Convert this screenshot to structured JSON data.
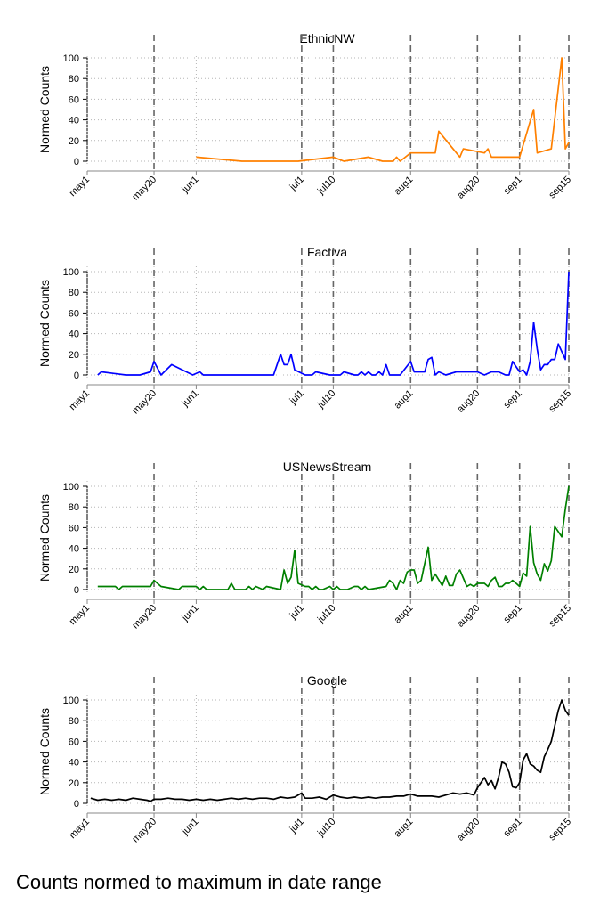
{
  "caption": "Counts normed to maximum in date range",
  "chart_data": [
    {
      "type": "line",
      "title": "EthnicNW",
      "ylabel": "Normed Counts",
      "xlabel": "",
      "ylim": [
        0,
        100
      ],
      "yticks": [
        0,
        20,
        40,
        60,
        80,
        100
      ],
      "xlim": [
        "2020-05-01",
        "2020-09-15"
      ],
      "xticks": [
        {
          "label": "may1",
          "date": "2020-05-01"
        },
        {
          "label": "may20",
          "date": "2020-05-20"
        },
        {
          "label": "jun1",
          "date": "2020-06-01"
        },
        {
          "label": "jul1",
          "date": "2020-07-01"
        },
        {
          "label": "jul10",
          "date": "2020-07-10"
        },
        {
          "label": "aug1",
          "date": "2020-08-01"
        },
        {
          "label": "aug20",
          "date": "2020-08-20"
        },
        {
          "label": "sep1",
          "date": "2020-09-01"
        },
        {
          "label": "sep15",
          "date": "2020-09-15"
        }
      ],
      "vlines": [
        "2020-05-20",
        "2020-07-01",
        "2020-07-10",
        "2020-08-01",
        "2020-08-20",
        "2020-09-01",
        "2020-09-15"
      ],
      "grid": true,
      "color": "#ff8000",
      "series": [
        {
          "x": [
            "2020-06-01",
            "2020-06-14",
            "2020-06-30",
            "2020-07-10",
            "2020-07-13",
            "2020-07-20",
            "2020-07-24",
            "2020-07-27",
            "2020-07-28",
            "2020-07-29",
            "2020-08-01",
            "2020-08-08",
            "2020-08-09",
            "2020-08-15",
            "2020-08-16",
            "2020-08-22",
            "2020-08-23",
            "2020-08-24",
            "2020-09-01",
            "2020-09-05",
            "2020-09-06",
            "2020-09-10",
            "2020-09-13",
            "2020-09-14",
            "2020-09-15"
          ],
          "y": [
            4,
            0,
            0,
            4,
            0,
            4,
            0,
            0,
            4,
            0,
            8,
            8,
            29,
            4,
            12,
            8,
            12,
            4,
            4,
            50,
            8,
            12,
            100,
            12,
            18
          ]
        }
      ]
    },
    {
      "type": "line",
      "title": "Factiva",
      "ylabel": "Normed Counts",
      "xlabel": "",
      "ylim": [
        0,
        100
      ],
      "yticks": [
        0,
        20,
        40,
        60,
        80,
        100
      ],
      "xlim": [
        "2020-05-01",
        "2020-09-15"
      ],
      "xticks": [
        {
          "label": "may1",
          "date": "2020-05-01"
        },
        {
          "label": "may20",
          "date": "2020-05-20"
        },
        {
          "label": "jun1",
          "date": "2020-06-01"
        },
        {
          "label": "jul1",
          "date": "2020-07-01"
        },
        {
          "label": "jul10",
          "date": "2020-07-10"
        },
        {
          "label": "aug1",
          "date": "2020-08-01"
        },
        {
          "label": "aug20",
          "date": "2020-08-20"
        },
        {
          "label": "sep1",
          "date": "2020-09-01"
        },
        {
          "label": "sep15",
          "date": "2020-09-15"
        }
      ],
      "vlines": [
        "2020-05-20",
        "2020-07-01",
        "2020-07-10",
        "2020-08-01",
        "2020-08-20",
        "2020-09-01",
        "2020-09-15"
      ],
      "grid": true,
      "color": "#0000ff",
      "series": [
        {
          "x": [
            "2020-05-04",
            "2020-05-05",
            "2020-05-12",
            "2020-05-16",
            "2020-05-19",
            "2020-05-20",
            "2020-05-22",
            "2020-05-25",
            "2020-05-31",
            "2020-06-02",
            "2020-06-03",
            "2020-06-23",
            "2020-06-25",
            "2020-06-26",
            "2020-06-27",
            "2020-06-28",
            "2020-06-29",
            "2020-07-02",
            "2020-07-04",
            "2020-07-05",
            "2020-07-09",
            "2020-07-12",
            "2020-07-13",
            "2020-07-16",
            "2020-07-17",
            "2020-07-18",
            "2020-07-19",
            "2020-07-20",
            "2020-07-21",
            "2020-07-22",
            "2020-07-23",
            "2020-07-24",
            "2020-07-25",
            "2020-07-26",
            "2020-07-27",
            "2020-07-29",
            "2020-08-01",
            "2020-08-02",
            "2020-08-04",
            "2020-08-05",
            "2020-08-06",
            "2020-08-07",
            "2020-08-08",
            "2020-08-09",
            "2020-08-11",
            "2020-08-14",
            "2020-08-20",
            "2020-08-22",
            "2020-08-24",
            "2020-08-26",
            "2020-08-28",
            "2020-08-29",
            "2020-08-30",
            "2020-09-01",
            "2020-09-02",
            "2020-09-03",
            "2020-09-04",
            "2020-09-05",
            "2020-09-06",
            "2020-09-07",
            "2020-09-08",
            "2020-09-09",
            "2020-09-10",
            "2020-09-11",
            "2020-09-12",
            "2020-09-14",
            "2020-09-15"
          ],
          "y": [
            0,
            3,
            0,
            0,
            3,
            13,
            0,
            10,
            0,
            3,
            0,
            0,
            20,
            10,
            10,
            20,
            5,
            0,
            0,
            3,
            0,
            0,
            3,
            0,
            0,
            3,
            0,
            3,
            0,
            0,
            3,
            0,
            10,
            0,
            0,
            0,
            13,
            3,
            3,
            3,
            15,
            17,
            0,
            3,
            0,
            3,
            3,
            0,
            3,
            3,
            0,
            0,
            13,
            3,
            5,
            0,
            13,
            51,
            25,
            5,
            10,
            10,
            15,
            15,
            30,
            15,
            100
          ]
        }
      ]
    },
    {
      "type": "line",
      "title": "USNewsStream",
      "ylabel": "Normed Counts",
      "xlabel": "",
      "ylim": [
        0,
        100
      ],
      "yticks": [
        0,
        20,
        40,
        60,
        80,
        100
      ],
      "xlim": [
        "2020-05-01",
        "2020-09-15"
      ],
      "xticks": [
        {
          "label": "may1",
          "date": "2020-05-01"
        },
        {
          "label": "may20",
          "date": "2020-05-20"
        },
        {
          "label": "jun1",
          "date": "2020-06-01"
        },
        {
          "label": "jul1",
          "date": "2020-07-01"
        },
        {
          "label": "jul10",
          "date": "2020-07-10"
        },
        {
          "label": "aug1",
          "date": "2020-08-01"
        },
        {
          "label": "aug20",
          "date": "2020-08-20"
        },
        {
          "label": "sep1",
          "date": "2020-09-01"
        },
        {
          "label": "sep15",
          "date": "2020-09-15"
        }
      ],
      "vlines": [
        "2020-05-20",
        "2020-07-01",
        "2020-07-10",
        "2020-08-01",
        "2020-08-20",
        "2020-09-01",
        "2020-09-15"
      ],
      "grid": true,
      "color": "#008000",
      "series": [
        {
          "x": [
            "2020-05-04",
            "2020-05-09",
            "2020-05-10",
            "2020-05-11",
            "2020-05-19",
            "2020-05-20",
            "2020-05-22",
            "2020-05-27",
            "2020-05-28",
            "2020-06-01",
            "2020-06-02",
            "2020-06-03",
            "2020-06-04",
            "2020-06-10",
            "2020-06-11",
            "2020-06-12",
            "2020-06-14",
            "2020-06-15",
            "2020-06-16",
            "2020-06-17",
            "2020-06-18",
            "2020-06-20",
            "2020-06-21",
            "2020-06-25",
            "2020-06-26",
            "2020-06-27",
            "2020-06-28",
            "2020-06-29",
            "2020-06-30",
            "2020-07-02",
            "2020-07-03",
            "2020-07-04",
            "2020-07-05",
            "2020-07-06",
            "2020-07-07",
            "2020-07-09",
            "2020-07-10",
            "2020-07-11",
            "2020-07-12",
            "2020-07-14",
            "2020-07-16",
            "2020-07-17",
            "2020-07-18",
            "2020-07-19",
            "2020-07-20",
            "2020-07-25",
            "2020-07-26",
            "2020-07-27",
            "2020-07-28",
            "2020-07-29",
            "2020-07-30",
            "2020-07-31",
            "2020-08-01",
            "2020-08-02",
            "2020-08-03",
            "2020-08-04",
            "2020-08-06",
            "2020-08-07",
            "2020-08-08",
            "2020-08-10",
            "2020-08-11",
            "2020-08-12",
            "2020-08-13",
            "2020-08-14",
            "2020-08-15",
            "2020-08-17",
            "2020-08-18",
            "2020-08-19",
            "2020-08-20",
            "2020-08-22",
            "2020-08-23",
            "2020-08-24",
            "2020-08-25",
            "2020-08-26",
            "2020-08-27",
            "2020-08-28",
            "2020-08-29",
            "2020-08-30",
            "2020-08-31",
            "2020-09-01",
            "2020-09-02",
            "2020-09-03",
            "2020-09-04",
            "2020-09-05",
            "2020-09-06",
            "2020-09-07",
            "2020-09-08",
            "2020-09-09",
            "2020-09-10",
            "2020-09-11",
            "2020-09-12",
            "2020-09-13",
            "2020-09-14",
            "2020-09-15"
          ],
          "y": [
            3,
            3,
            0,
            3,
            3,
            9,
            3,
            0,
            3,
            3,
            0,
            3,
            0,
            0,
            6,
            0,
            0,
            0,
            3,
            0,
            3,
            0,
            3,
            0,
            19,
            6,
            12,
            38,
            6,
            3,
            3,
            0,
            3,
            0,
            0,
            3,
            0,
            3,
            0,
            0,
            3,
            3,
            0,
            3,
            0,
            3,
            9,
            6,
            0,
            9,
            6,
            17,
            19,
            19,
            6,
            9,
            41,
            9,
            15,
            4,
            13,
            4,
            4,
            15,
            19,
            3,
            5,
            3,
            6,
            6,
            3,
            9,
            12,
            3,
            3,
            6,
            6,
            9,
            6,
            3,
            16,
            13,
            61,
            26,
            15,
            9,
            25,
            18,
            28,
            61,
            56,
            51,
            78,
            100
          ]
        }
      ]
    },
    {
      "type": "line",
      "title": "Google",
      "ylabel": "Normed Counts",
      "xlabel": "",
      "ylim": [
        0,
        100
      ],
      "yticks": [
        0,
        20,
        40,
        60,
        80,
        100
      ],
      "xlim": [
        "2020-05-01",
        "2020-09-15"
      ],
      "xticks": [
        {
          "label": "may1",
          "date": "2020-05-01"
        },
        {
          "label": "may20",
          "date": "2020-05-20"
        },
        {
          "label": "jun1",
          "date": "2020-06-01"
        },
        {
          "label": "jul1",
          "date": "2020-07-01"
        },
        {
          "label": "jul10",
          "date": "2020-07-10"
        },
        {
          "label": "aug1",
          "date": "2020-08-01"
        },
        {
          "label": "aug20",
          "date": "2020-08-20"
        },
        {
          "label": "sep1",
          "date": "2020-09-01"
        },
        {
          "label": "sep15",
          "date": "2020-09-15"
        }
      ],
      "vlines": [
        "2020-05-20",
        "2020-07-01",
        "2020-07-10",
        "2020-08-01",
        "2020-08-20",
        "2020-09-01",
        "2020-09-15"
      ],
      "grid": true,
      "color": "#000000",
      "series": [
        {
          "x": [
            "2020-05-02",
            "2020-05-04",
            "2020-05-06",
            "2020-05-08",
            "2020-05-10",
            "2020-05-12",
            "2020-05-14",
            "2020-05-16",
            "2020-05-18",
            "2020-05-19",
            "2020-05-20",
            "2020-05-22",
            "2020-05-24",
            "2020-05-26",
            "2020-05-28",
            "2020-05-30",
            "2020-06-01",
            "2020-06-03",
            "2020-06-05",
            "2020-06-07",
            "2020-06-09",
            "2020-06-11",
            "2020-06-13",
            "2020-06-15",
            "2020-06-17",
            "2020-06-19",
            "2020-06-21",
            "2020-06-23",
            "2020-06-25",
            "2020-06-27",
            "2020-06-29",
            "2020-07-01",
            "2020-07-02",
            "2020-07-04",
            "2020-07-06",
            "2020-07-08",
            "2020-07-10",
            "2020-07-12",
            "2020-07-14",
            "2020-07-16",
            "2020-07-18",
            "2020-07-20",
            "2020-07-22",
            "2020-07-24",
            "2020-07-26",
            "2020-07-28",
            "2020-07-30",
            "2020-08-01",
            "2020-08-03",
            "2020-08-05",
            "2020-08-07",
            "2020-08-09",
            "2020-08-11",
            "2020-08-13",
            "2020-08-15",
            "2020-08-17",
            "2020-08-19",
            "2020-08-20",
            "2020-08-22",
            "2020-08-23",
            "2020-08-24",
            "2020-08-25",
            "2020-08-26",
            "2020-08-27",
            "2020-08-28",
            "2020-08-29",
            "2020-08-30",
            "2020-08-31",
            "2020-09-01",
            "2020-09-02",
            "2020-09-03",
            "2020-09-04",
            "2020-09-05",
            "2020-09-06",
            "2020-09-07",
            "2020-09-08",
            "2020-09-09",
            "2020-09-10",
            "2020-09-11",
            "2020-09-12",
            "2020-09-13",
            "2020-09-14",
            "2020-09-15"
          ],
          "y": [
            5,
            3,
            4,
            3,
            4,
            3,
            5,
            4,
            3,
            2,
            4,
            4,
            5,
            4,
            4,
            3,
            4,
            3,
            4,
            3,
            4,
            5,
            4,
            5,
            4,
            5,
            5,
            4,
            6,
            5,
            6,
            10,
            5,
            5,
            6,
            4,
            8,
            6,
            5,
            6,
            5,
            6,
            5,
            6,
            6,
            7,
            7,
            9,
            7,
            7,
            7,
            6,
            8,
            10,
            9,
            10,
            8,
            15,
            25,
            18,
            22,
            14,
            25,
            40,
            38,
            30,
            16,
            15,
            20,
            42,
            48,
            38,
            36,
            32,
            30,
            45,
            52,
            60,
            75,
            90,
            100,
            90,
            85
          ]
        }
      ]
    }
  ]
}
